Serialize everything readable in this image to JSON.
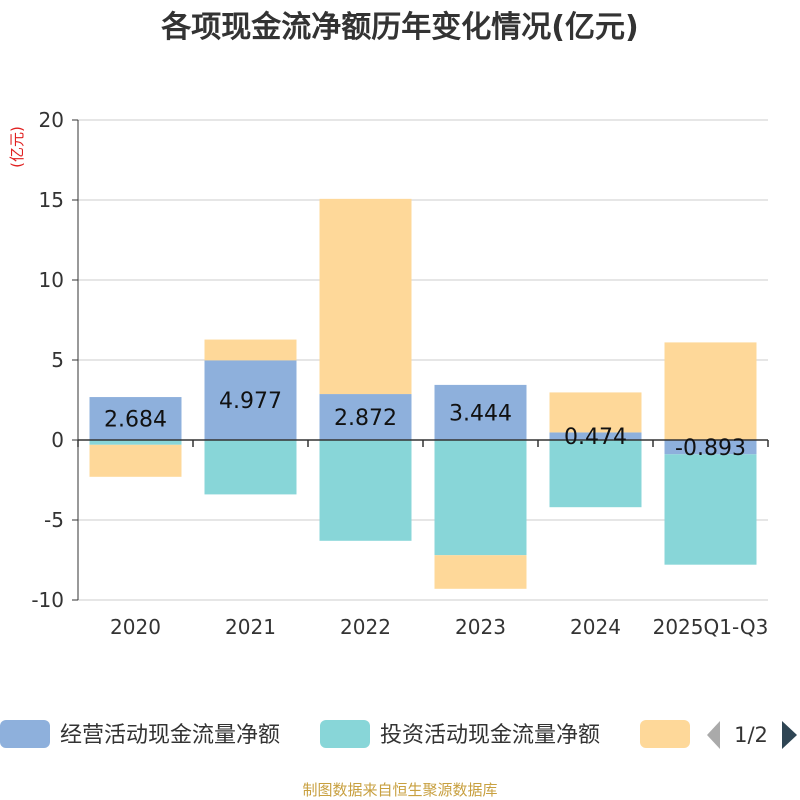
{
  "chart_data": {
    "type": "bar",
    "stacked": true,
    "title": "各项现金流净额历年变化情况(亿元)",
    "ylabel": "(亿元)",
    "xlabel": "",
    "ylim": [
      -10,
      20
    ],
    "yticks": [
      -10,
      -5,
      0,
      5,
      10,
      15,
      20
    ],
    "grid": true,
    "categories": [
      "2020",
      "2021",
      "2022",
      "2023",
      "2024",
      "2025Q1-Q3"
    ],
    "series": [
      {
        "name": "经营活动现金流量净额",
        "color": "#8eb0dc",
        "values": [
          2.684,
          4.977,
          2.872,
          3.444,
          0.474,
          -0.893
        ],
        "labels": [
          "2.684",
          "4.977",
          "2.872",
          "3.444",
          "0.474",
          "-0.893"
        ]
      },
      {
        "name": "投资活动现金流量净额",
        "color": "#88d6d8",
        "values": [
          -0.3,
          -3.4,
          -6.3,
          -7.2,
          -4.2,
          -6.9
        ]
      },
      {
        "name": "",
        "color": "#fed899",
        "values": [
          -2.0,
          1.3,
          12.2,
          -2.1,
          2.5,
          6.1
        ]
      }
    ],
    "legend": {
      "position": "bottom",
      "page": "1/2"
    }
  },
  "source": "制图数据来自恒生聚源数据库"
}
